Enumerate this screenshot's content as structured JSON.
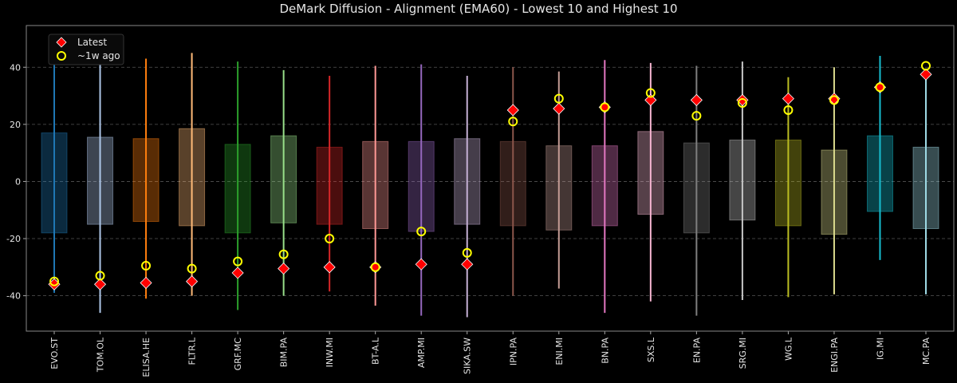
{
  "chart_data": {
    "type": "box-range",
    "title": "DeMark Diffusion - Alignment (EMA60) - Lowest 10 and Highest 10",
    "xlabel": "",
    "ylabel": "",
    "ylim": [
      -52.4,
      54.6
    ],
    "yticks": [
      -40,
      -20,
      0,
      20,
      40
    ],
    "grid": "horizontal-dashed",
    "legend": {
      "placement": "top-left",
      "entries": [
        {
          "label": "Latest",
          "marker": "red-diamond",
          "color": "#ff0000"
        },
        {
          "label": "~1w ago",
          "marker": "yellow-open-circle",
          "color": "#ffff00"
        }
      ]
    },
    "categories": [
      "EVO.ST",
      "TOM.OL",
      "ELISA.HE",
      "FLTR.L",
      "GRF.MC",
      "BIM.PA",
      "INW.MI",
      "BT-A.L",
      "AMP.MI",
      "SIKA.SW",
      "IPN.PA",
      "ENI.MI",
      "BN.PA",
      "SXS.L",
      "EN.PA",
      "SRG.MI",
      "WG.L",
      "ENGI.PA",
      "IG.MI",
      "MC.PA"
    ],
    "colors": [
      "#1f77b4",
      "#aec7e8",
      "#ff7f0e",
      "#ffbb78",
      "#2ca02c",
      "#98df8a",
      "#d62728",
      "#ff9896",
      "#9467bd",
      "#c5b0d5",
      "#8c564b",
      "#c49c94",
      "#e377c2",
      "#f7b6d2",
      "#7f7f7f",
      "#c7c7c7",
      "#bcbd22",
      "#dbdb8d",
      "#17becf",
      "#9edae5"
    ],
    "range_min": [
      -39,
      -46,
      -41,
      -40,
      -45,
      -40,
      -38.5,
      -43.5,
      -47,
      -47.5,
      -40,
      -37.5,
      -46,
      -42,
      -47,
      -41.5,
      -40.5,
      -39.5,
      -27.5,
      -39.5
    ],
    "range_max": [
      49.5,
      46,
      43,
      45,
      42,
      39,
      37,
      40.5,
      41,
      37,
      40,
      38.5,
      42.5,
      41.5,
      40.5,
      42,
      36.5,
      40,
      44,
      37.5
    ],
    "box_low": [
      -18,
      -15,
      -14,
      -15.5,
      -18,
      -14.5,
      -15,
      -16.5,
      -17.5,
      -15,
      -15.5,
      -17,
      -15.5,
      -11.5,
      -18,
      -13.5,
      -15.5,
      -18.5,
      -10.5,
      -16.5
    ],
    "box_high": [
      17,
      15.5,
      15,
      18.5,
      13,
      16,
      12,
      14,
      14,
      15,
      14,
      12.5,
      12.5,
      17.5,
      13.5,
      14.5,
      14.5,
      11,
      16,
      12
    ],
    "series": [
      {
        "name": "Latest",
        "values": [
          -36,
          -36,
          -35.5,
          -35,
          -32,
          -30.5,
          -30,
          -30,
          -29,
          -29,
          25,
          25.5,
          26,
          28.5,
          28.5,
          28.5,
          29,
          29,
          33,
          37.5
        ]
      },
      {
        "name": "~1w ago",
        "values": [
          -35,
          -33,
          -29.5,
          -30.5,
          -28,
          -25.5,
          -20,
          -30,
          -17.5,
          -25,
          21,
          29,
          26,
          31,
          23,
          27.5,
          25,
          28.5,
          33,
          40.5
        ]
      }
    ]
  }
}
